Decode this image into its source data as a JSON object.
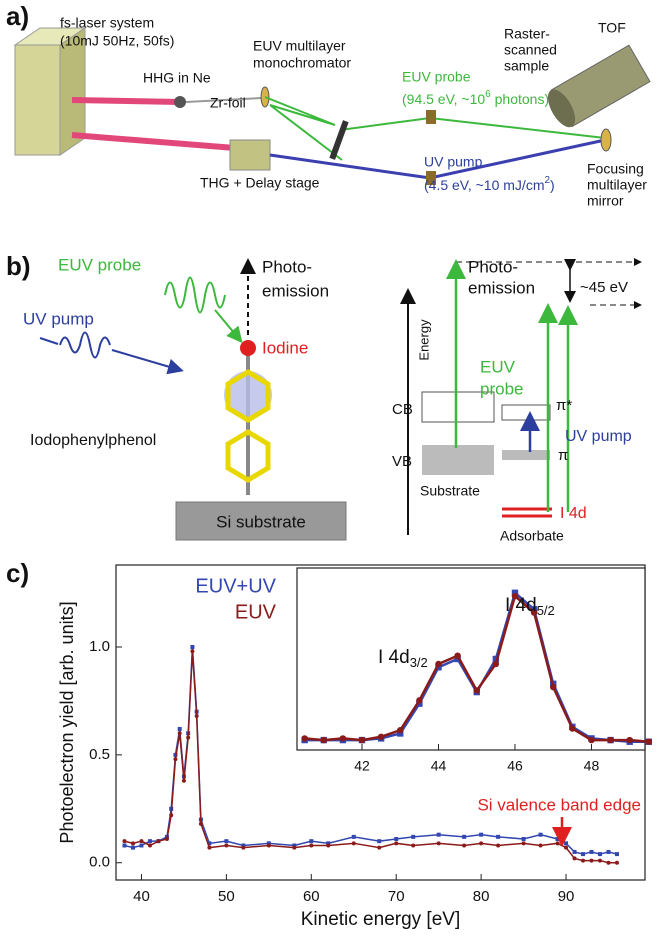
{
  "panel_a": {
    "label": "a)",
    "laser": [
      "fs-laser system",
      "(10mJ 50Hz, 50fs)"
    ],
    "hhg": "HHG in Ne",
    "foil": "Zr-foil",
    "mono": [
      "EUV multilayer",
      "monochromator"
    ],
    "probe": {
      "name": "EUV probe",
      "spec": "(94.5 eV, ~10",
      "sup": "6",
      "tail": " photons)"
    },
    "sample": [
      "Raster-",
      "scanned",
      "sample"
    ],
    "tof": "TOF",
    "thg": "THG + Delay stage",
    "pump": {
      "name": "UV pump",
      "spec": "(4.5 eV,  ~10 mJ/cm",
      "sup": "2",
      "tail": ")"
    },
    "mirror": [
      "Focusing",
      "multilayer",
      "mirror"
    ]
  },
  "panel_b": {
    "label": "b)",
    "left": {
      "probe": "EUV probe",
      "pump": "UV pump",
      "emission": [
        "Photo-",
        "emission"
      ],
      "iodine": "Iodine",
      "molecule": "Iodophenylphenol",
      "substrate": "Si substrate"
    },
    "right": {
      "emission": [
        "Photo-",
        "emission"
      ],
      "gap": "~45 eV",
      "axis": "Energy",
      "probe": [
        "EUV",
        "probe"
      ],
      "cb": "CB",
      "vb": "VB",
      "pi_star": "π*",
      "pump": "UV pump",
      "pi": "π",
      "substrate": "Substrate",
      "core": "I 4d",
      "adsorbate": "Adsorbate"
    }
  },
  "panel_c_label": "c)",
  "chart_data": [
    {
      "type": "line",
      "x_label": "Kinetic energy [eV]",
      "y_label": "Photoelectron yield [arb. units]",
      "xlim": [
        37,
        99.3
      ],
      "ylim": [
        -0.08,
        1.38
      ],
      "xticks": [
        40,
        50,
        60,
        70,
        80,
        90
      ],
      "yticks": [
        {
          "value": 0,
          "label": "0.0"
        },
        {
          "value": 0.5,
          "label": "0.5"
        },
        {
          "value": 1,
          "label": "1.0"
        }
      ],
      "legend": "upper left",
      "x": [
        38,
        39,
        40,
        41,
        42,
        43,
        43.5,
        44,
        44.5,
        45,
        45.5,
        46,
        46.5,
        47,
        48,
        50,
        52,
        55,
        58,
        60,
        62,
        65,
        68,
        70,
        72,
        75,
        78,
        80,
        82,
        85,
        87,
        89,
        90,
        91,
        92,
        93,
        94,
        95,
        96
      ],
      "series": [
        {
          "name": "EUV+UV",
          "color": "#3347b0",
          "marker": "square",
          "values": [
            0.08,
            0.07,
            0.08,
            0.1,
            0.1,
            0.12,
            0.25,
            0.5,
            0.62,
            0.4,
            0.6,
            1.0,
            0.7,
            0.2,
            0.09,
            0.1,
            0.08,
            0.09,
            0.08,
            0.1,
            0.09,
            0.12,
            0.1,
            0.11,
            0.12,
            0.13,
            0.12,
            0.13,
            0.12,
            0.11,
            0.13,
            0.11,
            0.09,
            0.05,
            0.04,
            0.05,
            0.04,
            0.05,
            0.04
          ]
        },
        {
          "name": "EUV",
          "color": "#8b1a1a",
          "marker": "circle",
          "values": [
            0.1,
            0.09,
            0.1,
            0.08,
            0.1,
            0.11,
            0.22,
            0.48,
            0.6,
            0.38,
            0.58,
            0.98,
            0.68,
            0.18,
            0.07,
            0.08,
            0.07,
            0.08,
            0.07,
            0.08,
            0.08,
            0.09,
            0.07,
            0.09,
            0.08,
            0.09,
            0.08,
            0.09,
            0.08,
            0.09,
            0.08,
            0.09,
            0.07,
            0.02,
            0.01,
            0.01,
            0.01,
            0.0,
            0.0
          ]
        }
      ],
      "annotations": [
        "Si valence band edge"
      ]
    },
    {
      "type": "line",
      "xlim": [
        40.3,
        49.4
      ],
      "ylim": [
        0,
        1.1
      ],
      "xticks": [
        42,
        44,
        46,
        48
      ],
      "x": [
        40.5,
        41,
        41.5,
        42,
        42.5,
        43,
        43.5,
        44,
        44.5,
        45,
        45.5,
        46,
        46.5,
        47,
        47.5,
        48,
        48.5,
        49,
        49.5
      ],
      "series": [
        {
          "color": "#3347b0",
          "marker": "square",
          "values": [
            0.06,
            0.06,
            0.06,
            0.06,
            0.07,
            0.1,
            0.28,
            0.5,
            0.55,
            0.35,
            0.55,
            0.95,
            0.85,
            0.4,
            0.14,
            0.07,
            0.06,
            0.05,
            0.05
          ]
        },
        {
          "color": "#8b1a1a",
          "marker": "circle",
          "values": [
            0.07,
            0.06,
            0.07,
            0.06,
            0.08,
            0.12,
            0.3,
            0.52,
            0.57,
            0.36,
            0.52,
            0.93,
            0.83,
            0.38,
            0.13,
            0.06,
            0.06,
            0.06,
            0.05
          ]
        }
      ],
      "peak_labels": [
        {
          "text": "I 4d",
          "sub": "3/2"
        },
        {
          "text": "I 4d",
          "sub": "5/2"
        }
      ]
    }
  ]
}
